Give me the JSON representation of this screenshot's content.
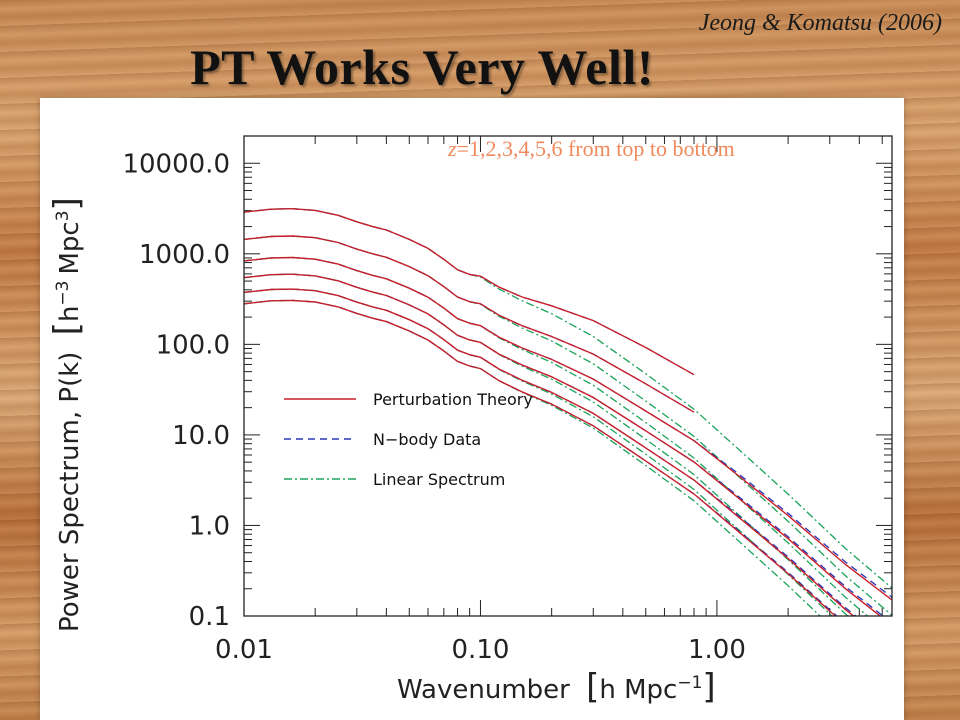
{
  "slide": {
    "citation": "Jeong & Komatsu (2006)",
    "title": "PT Works Very Well!"
  },
  "colors": {
    "pt": "#c8202a",
    "nbody": "#2a36b8",
    "linear": "#1aa35a",
    "annotation": "#f08a5d"
  },
  "chart_data": {
    "type": "line",
    "xscale": "log",
    "yscale": "log",
    "xlim": [
      0.01,
      5.5
    ],
    "ylim": [
      0.1,
      20000
    ],
    "xticks": [
      0.01,
      0.1,
      1.0
    ],
    "xtick_labels": [
      "0.01",
      "0.10",
      "1.00"
    ],
    "yticks": [
      0.1,
      1,
      10,
      100,
      1000,
      10000
    ],
    "ytick_labels": [
      "0.1",
      "1.0",
      "10.0",
      "100.0",
      "1000.0",
      "10000.0"
    ],
    "xlabel_main": "Wavenumber",
    "xlabel_unit": "h Mpc",
    "xlabel_exp": "−1",
    "ylabel_main": "Power Spectrum, P(k)",
    "ylabel_unit": "h",
    "ylabel_exp": "−3",
    "ylabel_unit2": "Mpc",
    "ylabel_exp2": "3",
    "annotation_z": "z",
    "annotation_rest": "=1,2,3,4,5,6 from top to bottom",
    "legend": [
      {
        "label": "Perturbation Theory",
        "style": "solid",
        "color": "#c8202a"
      },
      {
        "label": "N−body Data",
        "style": "dashed",
        "color": "#2a36b8"
      },
      {
        "label": "Linear Spectrum",
        "style": "dashdot",
        "color": "#1aa35a"
      }
    ],
    "k_grid": [
      0.01,
      0.013,
      0.016,
      0.02,
      0.025,
      0.03,
      0.035,
      0.04,
      0.05,
      0.06,
      0.07,
      0.08,
      0.09,
      0.1,
      0.12,
      0.15,
      0.2,
      0.3,
      0.5,
      0.8,
      1.2,
      2.0,
      3.5,
      5.5
    ],
    "linear_z0_shape": [
      7800,
      8400,
      8500,
      8150,
      7200,
      6100,
      5400,
      4950,
      3900,
      3100,
      2350,
      1800,
      1600,
      1500,
      1100,
      820,
      590,
      330,
      128,
      52,
      20,
      6,
      1.5,
      0.55
    ],
    "series": [
      {
        "name": "z=1",
        "z": 1,
        "kmax_data": 0.8,
        "boost": [
          1,
          1,
          1,
          1,
          1,
          1,
          1,
          1,
          1,
          1,
          1,
          1,
          1,
          1.02,
          1.05,
          1.1,
          1.22,
          1.5,
          1.95,
          2.4,
          2.8,
          3.2,
          3.6,
          4.0
        ]
      },
      {
        "name": "z=2",
        "z": 2,
        "kmax_data": 0.8,
        "boost": [
          1,
          1,
          1,
          1,
          1,
          1,
          1,
          1,
          1,
          1,
          1,
          1,
          1,
          1.01,
          1.03,
          1.06,
          1.12,
          1.28,
          1.55,
          1.85,
          2.1,
          2.45,
          2.8,
          3.1
        ]
      },
      {
        "name": "z=3",
        "z": 3,
        "kmax_data": 5.5,
        "boost": [
          1,
          1,
          1,
          1,
          1,
          1,
          1,
          1,
          1,
          1,
          1,
          1,
          1,
          1,
          1.02,
          1.04,
          1.08,
          1.17,
          1.34,
          1.55,
          1.75,
          2.0,
          2.3,
          2.55
        ]
      },
      {
        "name": "z=4",
        "z": 4,
        "kmax_data": 5.5,
        "boost": [
          1,
          1,
          1,
          1,
          1,
          1,
          1,
          1,
          1,
          1,
          1,
          1,
          1,
          1,
          1.01,
          1.03,
          1.06,
          1.12,
          1.24,
          1.38,
          1.52,
          1.7,
          1.9,
          2.05
        ]
      },
      {
        "name": "z=5",
        "z": 5,
        "kmax_data": 5.5,
        "boost": [
          1,
          1,
          1,
          1,
          1,
          1,
          1,
          1,
          1,
          1,
          1,
          1,
          1,
          1,
          1.01,
          1.02,
          1.04,
          1.09,
          1.17,
          1.27,
          1.37,
          1.5,
          1.63,
          1.75
        ]
      },
      {
        "name": "z=6",
        "z": 6,
        "kmax_data": 5.5,
        "boost": [
          1,
          1,
          1,
          1,
          1,
          1,
          1,
          1,
          1,
          1,
          1,
          1,
          1,
          1,
          1,
          1.01,
          1.03,
          1.06,
          1.12,
          1.19,
          1.26,
          1.36,
          1.46,
          1.55
        ]
      }
    ],
    "growth_sq": [
      0.37,
      0.185,
      0.107,
      0.07,
      0.048,
      0.036
    ]
  }
}
